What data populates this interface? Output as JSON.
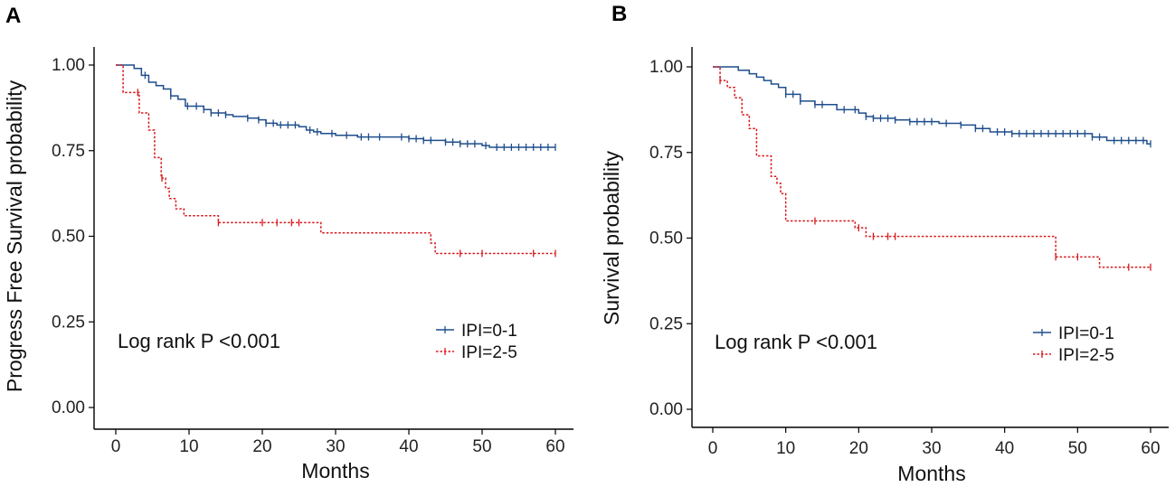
{
  "chart_data": [
    {
      "type": "line",
      "panel_label": "A",
      "xlabel": "Months",
      "ylabel": "Progress Free Survival probability",
      "xlim": [
        0,
        60
      ],
      "ylim": [
        0,
        1
      ],
      "x_ticks": [
        0,
        10,
        20,
        30,
        40,
        50,
        60
      ],
      "x_tick_labels": [
        "0",
        "10",
        "20",
        "30",
        "40",
        "50",
        "60"
      ],
      "y_ticks": [
        0,
        0.25,
        0.5,
        0.75,
        1.0
      ],
      "y_tick_labels": [
        "0.00",
        "0.25",
        "0.50",
        "0.75",
        "1.00"
      ],
      "annotation": "Log rank P <0.001",
      "legend_position": "bottom-right",
      "series": [
        {
          "name": "IPI=0-1",
          "color": "#1f4e8c",
          "dash": "solid",
          "steps": [
            [
              0,
              1.0
            ],
            [
              2.5,
              0.99
            ],
            [
              3.5,
              0.97
            ],
            [
              4.5,
              0.95
            ],
            [
              5.5,
              0.94
            ],
            [
              6.5,
              0.93
            ],
            [
              7.5,
              0.91
            ],
            [
              8.5,
              0.9
            ],
            [
              9.5,
              0.88
            ],
            [
              12,
              0.87
            ],
            [
              13,
              0.86
            ],
            [
              15,
              0.855
            ],
            [
              16,
              0.85
            ],
            [
              18,
              0.845
            ],
            [
              19.5,
              0.84
            ],
            [
              20.5,
              0.83
            ],
            [
              22,
              0.825
            ],
            [
              25,
              0.82
            ],
            [
              26,
              0.81
            ],
            [
              27,
              0.805
            ],
            [
              28,
              0.8
            ],
            [
              30,
              0.795
            ],
            [
              33,
              0.79
            ],
            [
              36,
              0.79
            ],
            [
              40,
              0.785
            ],
            [
              42,
              0.78
            ],
            [
              45,
              0.775
            ],
            [
              47,
              0.77
            ],
            [
              50,
              0.765
            ],
            [
              51,
              0.76
            ],
            [
              60,
              0.76
            ]
          ],
          "censor_x": [
            4,
            7.5,
            9.8,
            11,
            12,
            13,
            14,
            15,
            18,
            19.5,
            20.5,
            21.5,
            22.5,
            23.5,
            24.5,
            26.5,
            27.5,
            29.5,
            31.5,
            33.5,
            34.5,
            36,
            39,
            40,
            41,
            42,
            43,
            45,
            46,
            47,
            48,
            49,
            50.5,
            52,
            53,
            54,
            55,
            56,
            57,
            58,
            59,
            60
          ]
        },
        {
          "name": "IPI=2-5",
          "color": "#d7191c",
          "dash": "dotted",
          "steps": [
            [
              0,
              1.0
            ],
            [
              1,
              0.92
            ],
            [
              3.2,
              0.86
            ],
            [
              4.5,
              0.81
            ],
            [
              5.3,
              0.73
            ],
            [
              6.2,
              0.67
            ],
            [
              6.8,
              0.64
            ],
            [
              7.3,
              0.61
            ],
            [
              8.2,
              0.58
            ],
            [
              9.3,
              0.56
            ],
            [
              14,
              0.54
            ],
            [
              28,
              0.51
            ],
            [
              43,
              0.48
            ],
            [
              43.6,
              0.45
            ],
            [
              60,
              0.45
            ]
          ],
          "censor_x": [
            3,
            6.3,
            14,
            20,
            22,
            24,
            25,
            47,
            50,
            57,
            60
          ]
        }
      ]
    },
    {
      "type": "line",
      "panel_label": "B",
      "xlabel": "Months",
      "ylabel": "Survival probability",
      "xlim": [
        0,
        60
      ],
      "ylim": [
        0,
        1
      ],
      "x_ticks": [
        0,
        10,
        20,
        30,
        40,
        50,
        60
      ],
      "x_tick_labels": [
        "0",
        "10",
        "20",
        "30",
        "40",
        "50",
        "60"
      ],
      "y_ticks": [
        0,
        0.25,
        0.5,
        0.75,
        1.0
      ],
      "y_tick_labels": [
        "0.00",
        "0.25",
        "0.50",
        "0.75",
        "1.00"
      ],
      "annotation": "Log rank P <0.001",
      "legend_position": "bottom-right",
      "series": [
        {
          "name": "IPI=0-1",
          "color": "#1f4e8c",
          "dash": "solid",
          "steps": [
            [
              0,
              1.0
            ],
            [
              3.5,
              0.99
            ],
            [
              5,
              0.98
            ],
            [
              6,
              0.97
            ],
            [
              7,
              0.96
            ],
            [
              8,
              0.95
            ],
            [
              9,
              0.94
            ],
            [
              10,
              0.92
            ],
            [
              12,
              0.9
            ],
            [
              14,
              0.89
            ],
            [
              17,
              0.875
            ],
            [
              20,
              0.865
            ],
            [
              21,
              0.855
            ],
            [
              22,
              0.85
            ],
            [
              25,
              0.845
            ],
            [
              27,
              0.84
            ],
            [
              31,
              0.835
            ],
            [
              34,
              0.83
            ],
            [
              36,
              0.82
            ],
            [
              38,
              0.81
            ],
            [
              41,
              0.805
            ],
            [
              52,
              0.795
            ],
            [
              54,
              0.785
            ],
            [
              59.5,
              0.775
            ],
            [
              60,
              0.775
            ]
          ],
          "censor_x": [
            10,
            11,
            12,
            14,
            15,
            18,
            19.5,
            21,
            22,
            23,
            24,
            25,
            27,
            28,
            29,
            30,
            32,
            34,
            36,
            37,
            39,
            40,
            41,
            42,
            43,
            44,
            45,
            46,
            47,
            48,
            49,
            50,
            51,
            52,
            53,
            55,
            56,
            57,
            58,
            59,
            60
          ]
        },
        {
          "name": "IPI=2-5",
          "color": "#d7191c",
          "dash": "dotted",
          "steps": [
            [
              0,
              1.0
            ],
            [
              1,
              0.96
            ],
            [
              2,
              0.94
            ],
            [
              3,
              0.91
            ],
            [
              4,
              0.86
            ],
            [
              5,
              0.82
            ],
            [
              6,
              0.74
            ],
            [
              8,
              0.68
            ],
            [
              8.8,
              0.66
            ],
            [
              9.3,
              0.63
            ],
            [
              10,
              0.55
            ],
            [
              19.5,
              0.53
            ],
            [
              21,
              0.505
            ],
            [
              47,
              0.445
            ],
            [
              53,
              0.415
            ],
            [
              60,
              0.415
            ]
          ],
          "censor_x": [
            1,
            14,
            20,
            22,
            24,
            25,
            47,
            50,
            57,
            60
          ]
        }
      ]
    }
  ]
}
